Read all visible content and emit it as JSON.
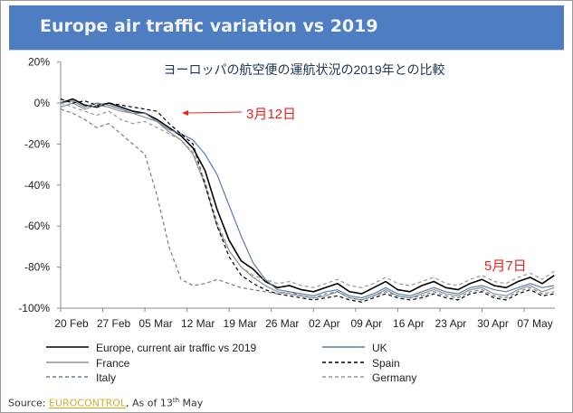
{
  "title": "Europe air traffic variation vs 2019",
  "source": {
    "label": "Source: ",
    "link": "EUROCONTROL",
    "suffix": ", As of 13",
    "sup": "th",
    "end": " May"
  },
  "chart_data": {
    "type": "line",
    "title": "Europe air traffic variation vs 2019",
    "subtitle": "ヨーロッパの航空便の運航状況の2019年との比較",
    "xlabel": "",
    "ylabel": "",
    "ylim": [
      -100,
      20
    ],
    "yticks": [
      20,
      0,
      -20,
      -40,
      -60,
      -80,
      -100
    ],
    "ytick_labels": [
      "20%",
      "0%",
      "-20%",
      "-40%",
      "-60%",
      "-80%",
      "-100%"
    ],
    "xtick_labels": [
      "20 Feb",
      "27 Feb",
      "05 Mar",
      "12 Mar",
      "19 Mar",
      "26 Mar",
      "02 Apr",
      "09 Apr",
      "16 Apr",
      "23 Apr",
      "30 Apr",
      "07 May"
    ],
    "x_start": "20 Feb",
    "x_step_days": 2,
    "series": [
      {
        "name": "Europe, current air traffic vs 2019",
        "color": "#000000",
        "dash": "",
        "values": [
          0,
          2,
          -1,
          -2,
          0,
          -2,
          -4,
          -5,
          -8,
          -12,
          -16,
          -22,
          -33,
          -52,
          -67,
          -77,
          -81,
          -87,
          -90,
          -89,
          -91,
          -92,
          -90,
          -88,
          -92,
          -93,
          -90,
          -87,
          -91,
          -92,
          -89,
          -87,
          -90,
          -91,
          -88,
          -86,
          -89,
          -90,
          -87,
          -85,
          -88,
          -84
        ]
      },
      {
        "name": "UK",
        "color": "#5b7fa6",
        "dash": "",
        "values": [
          0,
          1,
          -2,
          0,
          -1,
          -3,
          -5,
          -5,
          -9,
          -13,
          -15,
          -18,
          -25,
          -35,
          -50,
          -65,
          -78,
          -86,
          -91,
          -92,
          -93,
          -94,
          -92,
          -91,
          -94,
          -95,
          -93,
          -90,
          -93,
          -94,
          -92,
          -90,
          -92,
          -93,
          -90,
          -89,
          -91,
          -92,
          -90,
          -88,
          -90,
          -89
        ]
      },
      {
        "name": "France",
        "color": "#909090",
        "dash": "",
        "values": [
          -2,
          0,
          -3,
          -1,
          -2,
          -4,
          -5,
          -7,
          -9,
          -14,
          -18,
          -25,
          -40,
          -60,
          -72,
          -80,
          -85,
          -89,
          -92,
          -93,
          -94,
          -95,
          -94,
          -92,
          -95,
          -96,
          -94,
          -91,
          -94,
          -95,
          -93,
          -91,
          -93,
          -94,
          -91,
          -90,
          -93,
          -94,
          -91,
          -89,
          -92,
          -90
        ]
      },
      {
        "name": "Spain",
        "color": "#000000",
        "dash": "4,3",
        "values": [
          2,
          0,
          1,
          -1,
          0,
          -1,
          -2,
          -3,
          -4,
          -10,
          -15,
          -20,
          -40,
          -60,
          -75,
          -84,
          -88,
          -91,
          -93,
          -94,
          -95,
          -96,
          -95,
          -94,
          -96,
          -97,
          -95,
          -93,
          -95,
          -96,
          -95,
          -93,
          -95,
          -96,
          -93,
          -92,
          -95,
          -96,
          -93,
          -91,
          -94,
          -93
        ]
      },
      {
        "name": "Italy",
        "color": "#6a7f92",
        "dash": "4,3",
        "values": [
          -3,
          -5,
          -8,
          -12,
          -10,
          -15,
          -20,
          -25,
          -45,
          -70,
          -86,
          -89,
          -88,
          -86,
          -88,
          -90,
          -91,
          -92,
          -93,
          -92,
          -94,
          -95,
          -93,
          -92,
          -95,
          -96,
          -94,
          -92,
          -94,
          -95,
          -94,
          -92,
          -94,
          -95,
          -92,
          -91,
          -94,
          -95,
          -92,
          -90,
          -93,
          -92
        ]
      },
      {
        "name": "Germany",
        "color": "#999999",
        "dash": "4,3",
        "values": [
          0,
          -2,
          -4,
          -6,
          -4,
          -8,
          -10,
          -9,
          -12,
          -15,
          -18,
          -24,
          -38,
          -58,
          -72,
          -80,
          -84,
          -86,
          -88,
          -87,
          -89,
          -90,
          -88,
          -86,
          -89,
          -90,
          -88,
          -85,
          -88,
          -89,
          -87,
          -85,
          -88,
          -89,
          -86,
          -84,
          -87,
          -88,
          -85,
          -83,
          -86,
          -82
        ]
      }
    ],
    "annotations": [
      {
        "text": "3月12日",
        "color": "#e8241c"
      },
      {
        "text": "5月7日",
        "color": "#e8241c"
      }
    ],
    "legend_position": "bottom"
  }
}
